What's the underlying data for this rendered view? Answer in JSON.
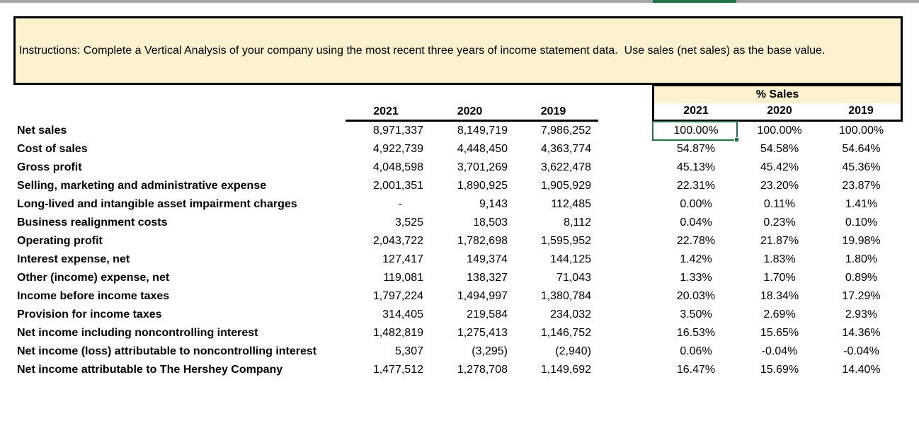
{
  "instructions": {
    "text": "Instructions: Complete a Vertical Analysis of your company using the most recent three years of income statement data.  Use sales (net sales) as the base value."
  },
  "colors": {
    "banner_fill": "#FCF1CF",
    "selection_green": "#217346",
    "header_strip_gray": "#A6A6A6",
    "border_black": "#000000"
  },
  "table": {
    "pct_header": "% Sales",
    "dollar_years": [
      "2021",
      "2020",
      "2019"
    ],
    "pct_years": [
      "2021",
      "2020",
      "2019"
    ],
    "rows": [
      {
        "label": "Net sales",
        "dollars": [
          "8,971,337",
          "8,149,719",
          "7,986,252"
        ],
        "pcts": [
          "100.00%",
          "100.00%",
          "100.00%"
        ]
      },
      {
        "label": "Cost of sales",
        "dollars": [
          "4,922,739",
          "4,448,450",
          "4,363,774"
        ],
        "pcts": [
          "54.87%",
          "54.58%",
          "54.64%"
        ]
      },
      {
        "label": "Gross profit",
        "dollars": [
          "4,048,598",
          "3,701,269",
          "3,622,478"
        ],
        "pcts": [
          "45.13%",
          "45.42%",
          "45.36%"
        ]
      },
      {
        "label": "Selling, marketing and administrative expense",
        "dollars": [
          "2,001,351",
          "1,890,925",
          "1,905,929"
        ],
        "pcts": [
          "22.31%",
          "23.20%",
          "23.87%"
        ]
      },
      {
        "label": "Long-lived and intangible asset impairment charges",
        "dollars": [
          "-",
          "9,143",
          "112,485"
        ],
        "pcts": [
          "0.00%",
          "0.11%",
          "1.41%"
        ]
      },
      {
        "label": "Business realignment costs",
        "dollars": [
          "3,525",
          "18,503",
          "8,112"
        ],
        "pcts": [
          "0.04%",
          "0.23%",
          "0.10%"
        ]
      },
      {
        "label": "Operating profit",
        "dollars": [
          "2,043,722",
          "1,782,698",
          "1,595,952"
        ],
        "pcts": [
          "22.78%",
          "21.87%",
          "19.98%"
        ]
      },
      {
        "label": "Interest expense, net",
        "dollars": [
          "127,417",
          "149,374",
          "144,125"
        ],
        "pcts": [
          "1.42%",
          "1.83%",
          "1.80%"
        ]
      },
      {
        "label": "Other (income) expense, net",
        "dollars": [
          "119,081",
          "138,327",
          "71,043"
        ],
        "pcts": [
          "1.33%",
          "1.70%",
          "0.89%"
        ]
      },
      {
        "label": "Income before income taxes",
        "dollars": [
          "1,797,224",
          "1,494,997",
          "1,380,784"
        ],
        "pcts": [
          "20.03%",
          "18.34%",
          "17.29%"
        ]
      },
      {
        "label": "Provision for income taxes",
        "dollars": [
          "314,405",
          "219,584",
          "234,032"
        ],
        "pcts": [
          "3.50%",
          "2.69%",
          "2.93%"
        ]
      },
      {
        "label": "Net income including noncontrolling interest",
        "dollars": [
          "1,482,819",
          "1,275,413",
          "1,146,752"
        ],
        "pcts": [
          "16.53%",
          "15.65%",
          "14.36%"
        ]
      },
      {
        "label": "Net income (loss) attributable to noncontrolling interest",
        "dollars": [
          "5,307",
          "(3,295)",
          "(2,940)"
        ],
        "pcts": [
          "0.06%",
          "-0.04%",
          "-0.04%"
        ]
      },
      {
        "label": "Net income attributable to The Hershey Company",
        "dollars": [
          "1,477,512",
          "1,278,708",
          "1,149,692"
        ],
        "pcts": [
          "16.47%",
          "15.69%",
          "14.40%"
        ]
      }
    ]
  }
}
